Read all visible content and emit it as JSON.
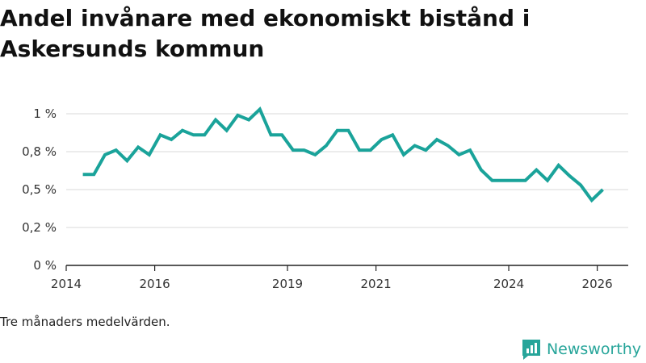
{
  "chart_data": {
    "type": "line",
    "title": "Andel invånare med ekonomiskt bistånd i Askersunds kommun",
    "xlabel": "",
    "ylabel": "",
    "xlim": [
      2014.0,
      2026.7
    ],
    "ylim": [
      0,
      1.0
    ],
    "x_ticks": [
      {
        "value": 2014,
        "label": "2014"
      },
      {
        "value": 2016,
        "label": "2016"
      },
      {
        "value": 2019,
        "label": "2019"
      },
      {
        "value": 2021,
        "label": "2021"
      },
      {
        "value": 2024,
        "label": "2024"
      },
      {
        "value": 2026,
        "label": "2026"
      }
    ],
    "y_ticks": [
      {
        "value": 0,
        "label": "0 %"
      },
      {
        "value": 0.25,
        "label": "0,2 %"
      },
      {
        "value": 0.5,
        "label": "0,5 %"
      },
      {
        "value": 0.75,
        "label": "0,8 %"
      },
      {
        "value": 1.0,
        "label": "1 %"
      }
    ],
    "series": [
      {
        "name": "Andel invånare med ekonomiskt bistånd",
        "color": "#1aa39a",
        "x": [
          2014.375,
          2014.625,
          2014.875,
          2015.125,
          2015.375,
          2015.625,
          2015.875,
          2016.125,
          2016.375,
          2016.625,
          2016.875,
          2017.125,
          2017.375,
          2017.625,
          2017.875,
          2018.125,
          2018.375,
          2018.625,
          2018.875,
          2019.125,
          2019.375,
          2019.625,
          2019.875,
          2020.125,
          2020.375,
          2020.625,
          2020.875,
          2021.125,
          2021.375,
          2021.625,
          2021.875,
          2022.125,
          2022.375,
          2022.625,
          2022.875,
          2023.125,
          2023.375,
          2023.625,
          2023.875,
          2024.125,
          2024.375,
          2024.625,
          2024.875,
          2025.125,
          2025.375,
          2025.625,
          2025.875,
          2026.125
        ],
        "values": [
          0.6,
          0.6,
          0.73,
          0.76,
          0.69,
          0.78,
          0.73,
          0.86,
          0.83,
          0.89,
          0.86,
          0.86,
          0.96,
          0.89,
          0.99,
          0.96,
          1.03,
          0.86,
          0.86,
          0.76,
          0.76,
          0.73,
          0.79,
          0.89,
          0.89,
          0.76,
          0.76,
          0.83,
          0.86,
          0.73,
          0.79,
          0.76,
          0.83,
          0.79,
          0.73,
          0.76,
          0.63,
          0.56,
          0.56,
          0.56,
          0.56,
          0.63,
          0.56,
          0.66,
          0.59,
          0.53,
          0.43,
          0.5
        ]
      }
    ]
  },
  "note": "Tre månaders medelvärden.",
  "brand": {
    "name": "Newsworthy",
    "color": "#27a59a"
  }
}
